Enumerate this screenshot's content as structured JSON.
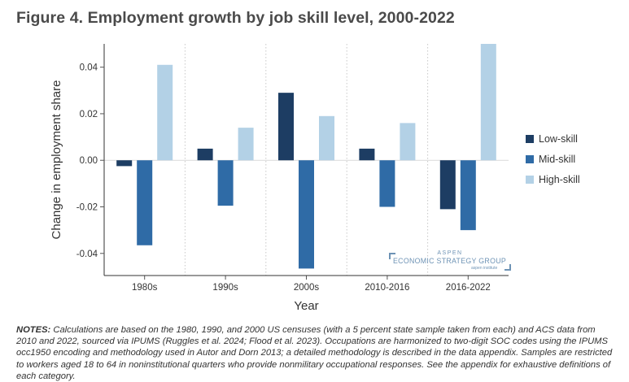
{
  "title": "Figure 4. Employment growth by job skill level, 2000-2022",
  "chart_data": {
    "type": "bar",
    "categories": [
      "1980s",
      "1990s",
      "2000s",
      "2010-2016",
      "2016-2022"
    ],
    "series": [
      {
        "name": "Low-skill",
        "color": "#1d3d63",
        "values": [
          -0.0025,
          0.005,
          0.029,
          0.005,
          -0.021
        ]
      },
      {
        "name": "Mid-skill",
        "color": "#2f6ba6",
        "values": [
          -0.0365,
          -0.0195,
          -0.0465,
          -0.02,
          -0.03
        ]
      },
      {
        "name": "High-skill",
        "color": "#b3d1e6",
        "values": [
          0.041,
          0.014,
          0.019,
          0.016,
          0.05
        ]
      }
    ],
    "xlabel": "Year",
    "ylabel": "Change in employment share",
    "ylim": [
      -0.0495,
      0.05
    ],
    "yticks": [
      0.04,
      0.02,
      0.0,
      -0.02,
      -0.04
    ],
    "ytick_labels": [
      "0.04",
      "0.02",
      "0.00",
      "-0.02",
      "-0.04"
    ],
    "legend_position": "right"
  },
  "watermark": {
    "top": "ASPEN",
    "main": "ECONOMIC STRATEGY GROUP",
    "sub": "aspen institute"
  },
  "notes": {
    "label": "NOTES:",
    "text": "Calculations are based on the 1980, 1990, and 2000 US censuses (with a 5 percent state sample taken from each) and ACS data from 2010 and 2022, sourced via IPUMS (Ruggles et al. 2024; Flood et al. 2023). Occupations are harmonized to two-digit SOC codes using the IPUMS occ1950 encoding and methodology used in Autor and Dorn 2013; a detailed methodology is described in the data appendix. Samples are restricted to workers aged 18 to 64 in noninstitutional quarters who provide nonmilitary occupational responses. See the appendix for exhaustive definitions of each category."
  }
}
